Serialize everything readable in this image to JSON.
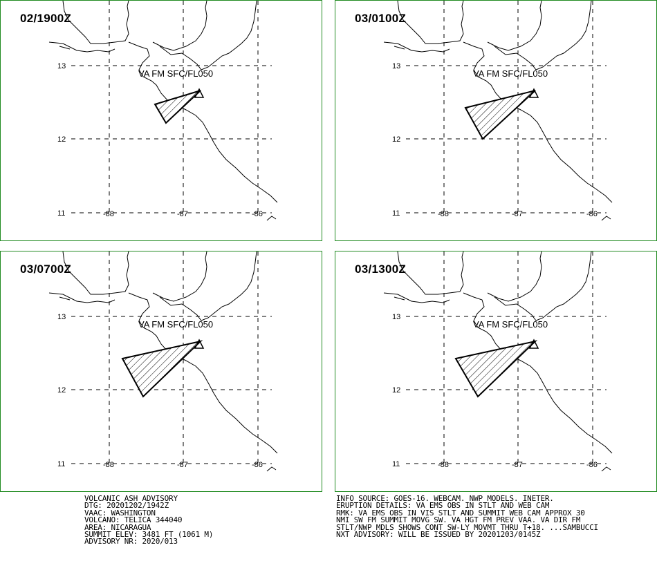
{
  "panels": [
    {
      "time": "02/1900Z",
      "va_label": "VA FM SFC/FL050",
      "lat_labels": [
        "13",
        "12",
        "11"
      ],
      "lon_labels": [
        "-88",
        "-87",
        "-86"
      ]
    },
    {
      "time": "03/0100Z",
      "va_label": "VA FM SFC/FL050",
      "lat_labels": [
        "13",
        "12",
        "11"
      ],
      "lon_labels": [
        "-88",
        "-87",
        "-86"
      ]
    },
    {
      "time": "03/0700Z",
      "va_label": "VA FM SFC/FL050",
      "lat_labels": [
        "13",
        "12",
        "11"
      ],
      "lon_labels": [
        "-88",
        "-87",
        "-86"
      ]
    },
    {
      "time": "03/1300Z",
      "va_label": "VA FM SFC/FL050",
      "lat_labels": [
        "13",
        "12",
        "11"
      ],
      "lon_labels": [
        "-88",
        "-87",
        "-86"
      ]
    }
  ],
  "advisory_left": [
    "VOLCANIC ASH ADVISORY",
    "DTG: 20201202/1942Z",
    "VAAC: WASHINGTON",
    "VOLCANO: TELICA 344040",
    "AREA: NICARAGUA",
    "SUMMIT ELEV: 3481 FT (1061 M)",
    "ADVISORY NR: 2020/013"
  ],
  "advisory_right": [
    "INFO SOURCE: GOES-16. WEBCAM. NWP MODELS. INETER.",
    "ERUPTION DETAILS: VA EMS OBS IN STLT AND WEB CAM",
    "RMK: VA EMS OBS IN VIS STLT AND SUMMIT WEB CAM APPROX 30",
    "NMI SW FM SUMMIT MOVG SW. VA HGT FM PREV VAA. VA DIR FM",
    "STLT/NWP MDLS SHOWS CONT SW-LY MOVMT THRU T+18. ...SAMBUCCI",
    "NXT ADVISORY: WILL BE ISSUED BY 20201203/0145Z"
  ],
  "colors": {
    "panel_border": "#1f8a1f",
    "lines": "#000000"
  },
  "icons": {
    "volcano": "volcano-triangle-icon"
  }
}
